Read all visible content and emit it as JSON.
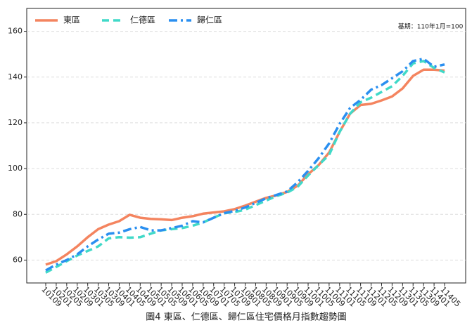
{
  "chart_data": {
    "type": "line",
    "caption": "圖4 東區、仁德區、歸仁區住宅價格月指數趨勢圖",
    "annotation": "基期：110年1月=100",
    "categories": [
      "10109",
      "10201",
      "10205",
      "10209",
      "10301",
      "10305",
      "10309",
      "10401",
      "10405",
      "10409",
      "10501",
      "10505",
      "10509",
      "10601",
      "10605",
      "10609",
      "10701",
      "10705",
      "10709",
      "10801",
      "10805",
      "10809",
      "10901",
      "10905",
      "10909",
      "11001",
      "11005",
      "11009",
      "11101",
      "11105",
      "11109",
      "11201",
      "11205",
      "11209",
      "11301",
      "11305",
      "11309",
      "11401",
      "11405"
    ],
    "series": [
      {
        "name": "東區",
        "color": "#f4845f",
        "dash": "solid",
        "values": [
          58,
          59.5,
          62.5,
          66,
          70,
          73.5,
          75.5,
          77,
          79.8,
          78.5,
          78,
          77.8,
          77.5,
          78.5,
          79.2,
          80.3,
          80.8,
          81.3,
          82.3,
          83.8,
          85.5,
          87.2,
          88.3,
          89.8,
          92.5,
          97.5,
          101.5,
          107,
          116,
          124,
          127.8,
          128.3,
          129.8,
          131.5,
          135,
          140.5,
          143.2,
          143.2,
          142.8
        ]
      },
      {
        "name": "仁德區",
        "color": "#40d9c8",
        "dash": "dashed",
        "values": [
          54.5,
          57,
          59.5,
          62,
          64,
          66,
          69.5,
          70,
          69.8,
          70,
          71.5,
          73,
          73.5,
          74,
          75,
          76.5,
          78.5,
          80.5,
          81,
          82,
          84,
          86,
          88,
          89.5,
          92,
          97,
          101.5,
          106,
          116,
          124,
          129,
          131,
          133.5,
          136,
          140.5,
          146,
          147,
          144,
          142
        ]
      },
      {
        "name": "歸仁區",
        "color": "#2a8ff0",
        "dash": "dashdot",
        "values": [
          55.5,
          58,
          60,
          62.5,
          66,
          69,
          71.5,
          72,
          73.5,
          74.5,
          73,
          73,
          74,
          75,
          77,
          76.5,
          78.5,
          80.5,
          81.5,
          83,
          85,
          87,
          88.5,
          90,
          94,
          99,
          104.5,
          111,
          119.5,
          126.5,
          130,
          134.5,
          136.5,
          139.5,
          142.5,
          147,
          148,
          144.5,
          145.5
        ]
      }
    ],
    "ylim": [
      50,
      170
    ],
    "yticks": [
      60,
      80,
      100,
      120,
      140,
      160
    ],
    "grid": true,
    "legend": "upper left"
  }
}
